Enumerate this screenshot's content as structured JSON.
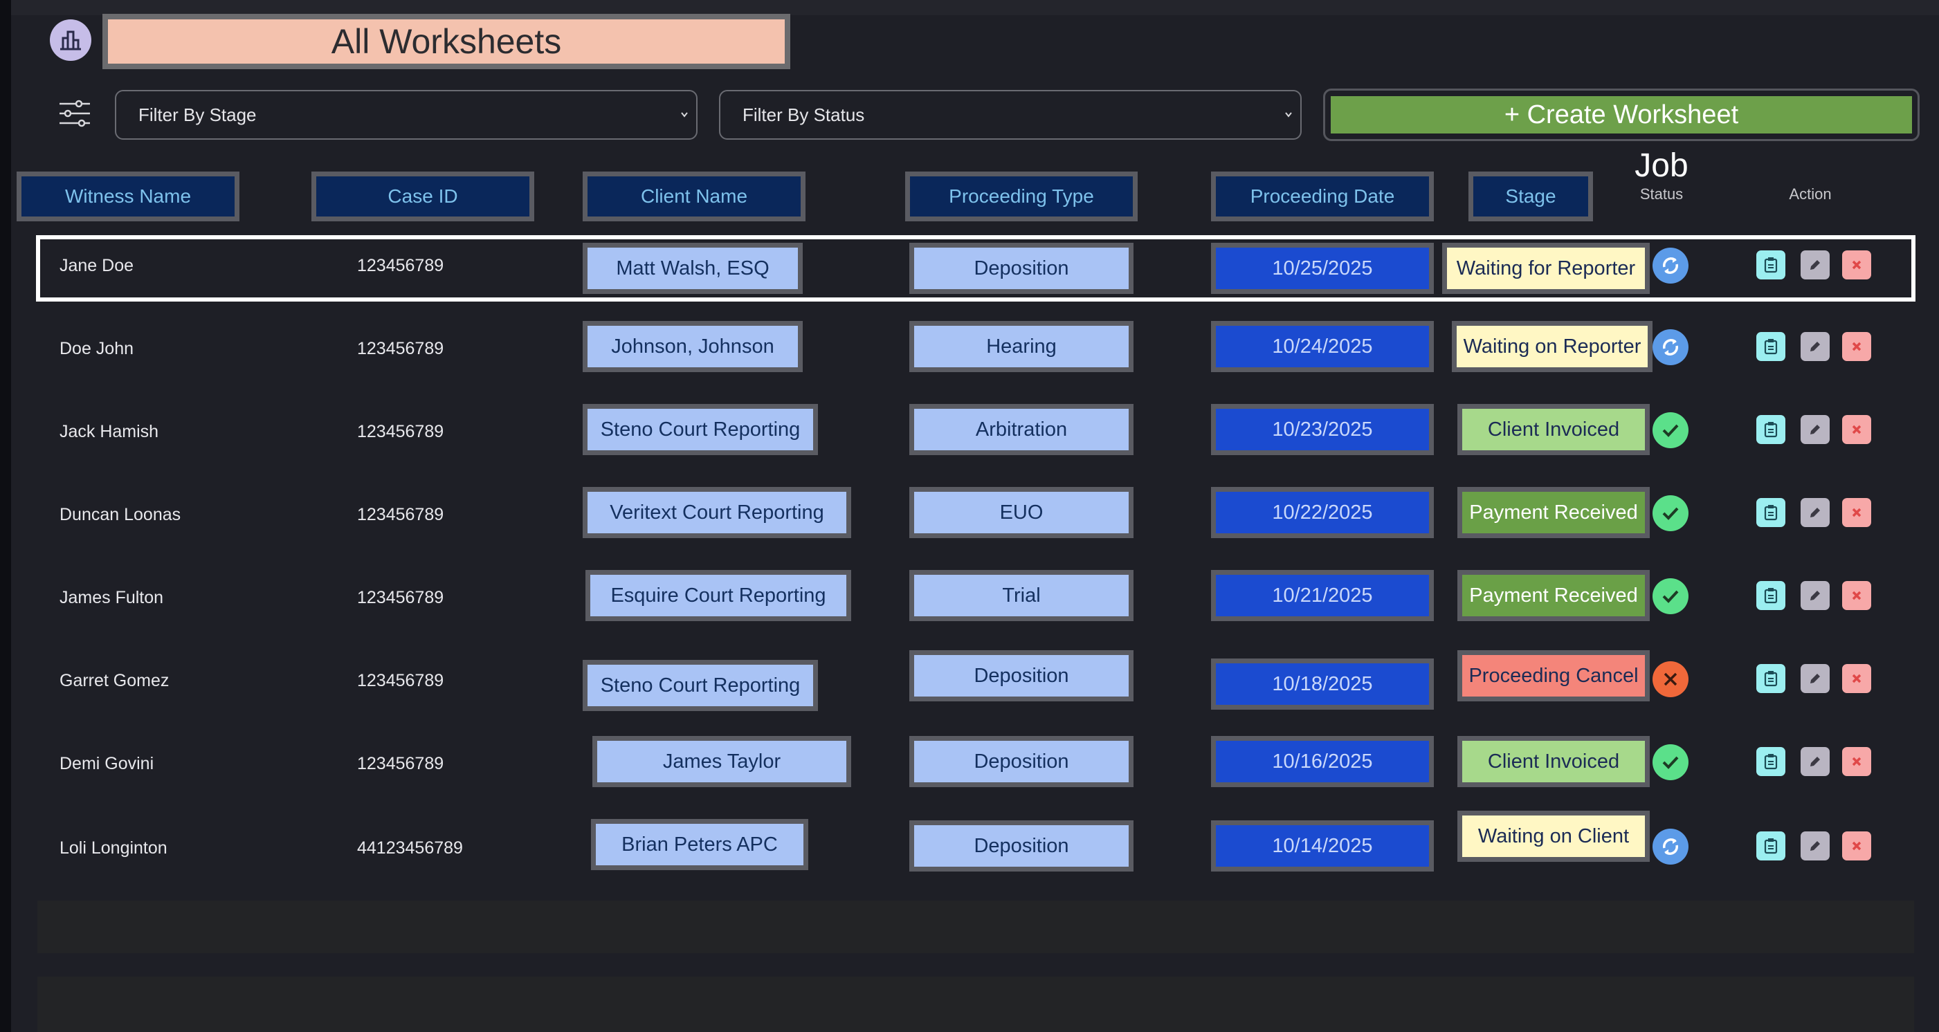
{
  "header": {
    "title": "All Worksheets",
    "filter_stage": "Filter By Stage",
    "filter_status": "Filter By Status",
    "create_label": "+ Create Worksheet"
  },
  "columns": {
    "witness": "Witness Name",
    "case": "Case ID",
    "client": "Client Name",
    "ptype": "Proceeding Type",
    "pdate": "Proceeding Date",
    "stage": "Stage",
    "job": "Job",
    "status": "Status",
    "action": "Action"
  },
  "rows": [
    {
      "witness": "Jane Doe",
      "case_id": "123456789",
      "client": "Matt Walsh, ESQ",
      "ptype": "Deposition",
      "date": "10/25/2025",
      "stage": "Waiting for Reporter",
      "stage_color": "yellow",
      "status": "pending",
      "selected": true
    },
    {
      "witness": "Doe John",
      "case_id": "123456789",
      "client": "Johnson, Johnson",
      "ptype": "Hearing",
      "date": "10/24/2025",
      "stage": "Waiting on Reporter",
      "stage_color": "yellow",
      "status": "pending",
      "selected": false
    },
    {
      "witness": "Jack Hamish",
      "case_id": "123456789",
      "client": "Steno Court Reporting",
      "ptype": "Arbitration",
      "date": "10/23/2025",
      "stage": "Client Invoiced",
      "stage_color": "green",
      "status": "done",
      "selected": false
    },
    {
      "witness": "Duncan Loonas",
      "case_id": "123456789",
      "client": "Veritext Court Reporting",
      "ptype": "EUO",
      "date": "10/22/2025",
      "stage": "Payment Received",
      "stage_color": "dgreen",
      "status": "done",
      "selected": false
    },
    {
      "witness": "James Fulton",
      "case_id": "123456789",
      "client": "Esquire Court Reporting",
      "ptype": "Trial",
      "date": "10/21/2025",
      "stage": "Payment Received",
      "stage_color": "dgreen",
      "status": "done",
      "selected": false
    },
    {
      "witness": "Garret Gomez",
      "case_id": "123456789",
      "client": "Steno Court Reporting",
      "ptype": "Deposition",
      "date": "10/18/2025",
      "stage": "Proceeding Cancel",
      "stage_color": "red",
      "status": "cancel",
      "selected": false
    },
    {
      "witness": "Demi Govini",
      "case_id": "123456789",
      "client": "James Taylor",
      "ptype": "Deposition",
      "date": "10/16/2025",
      "stage": "Client Invoiced",
      "stage_color": "green",
      "status": "done",
      "selected": false
    },
    {
      "witness": "Loli Longinton",
      "case_id": "44123456789",
      "client": "Brian Peters APC",
      "ptype": "Deposition",
      "date": "10/14/2025",
      "stage": "Waiting on Client",
      "stage_color": "yellow",
      "status": "pending",
      "selected": false
    }
  ],
  "colors": {
    "background": "#1e1f26",
    "header_pill": "#0a275a",
    "header_text": "#7ec2ec",
    "client_pill": "#a9c3f5",
    "date_pill": "#1b4bd0",
    "stage_yellow": "#fff7c4",
    "stage_green": "#a7d98b",
    "stage_dark_green": "#6aa047",
    "stage_red": "#f4857a",
    "create_button": "#6da04a",
    "title_box": "#f4c2ae"
  },
  "icons": {
    "logo": "bar-chart-icon",
    "filter": "sliders-icon",
    "status_pending": "sync-icon",
    "status_done": "check-icon",
    "status_cancel": "close-icon",
    "action_view": "clipboard-icon",
    "action_edit": "pencil-icon",
    "action_delete": "x-icon"
  }
}
